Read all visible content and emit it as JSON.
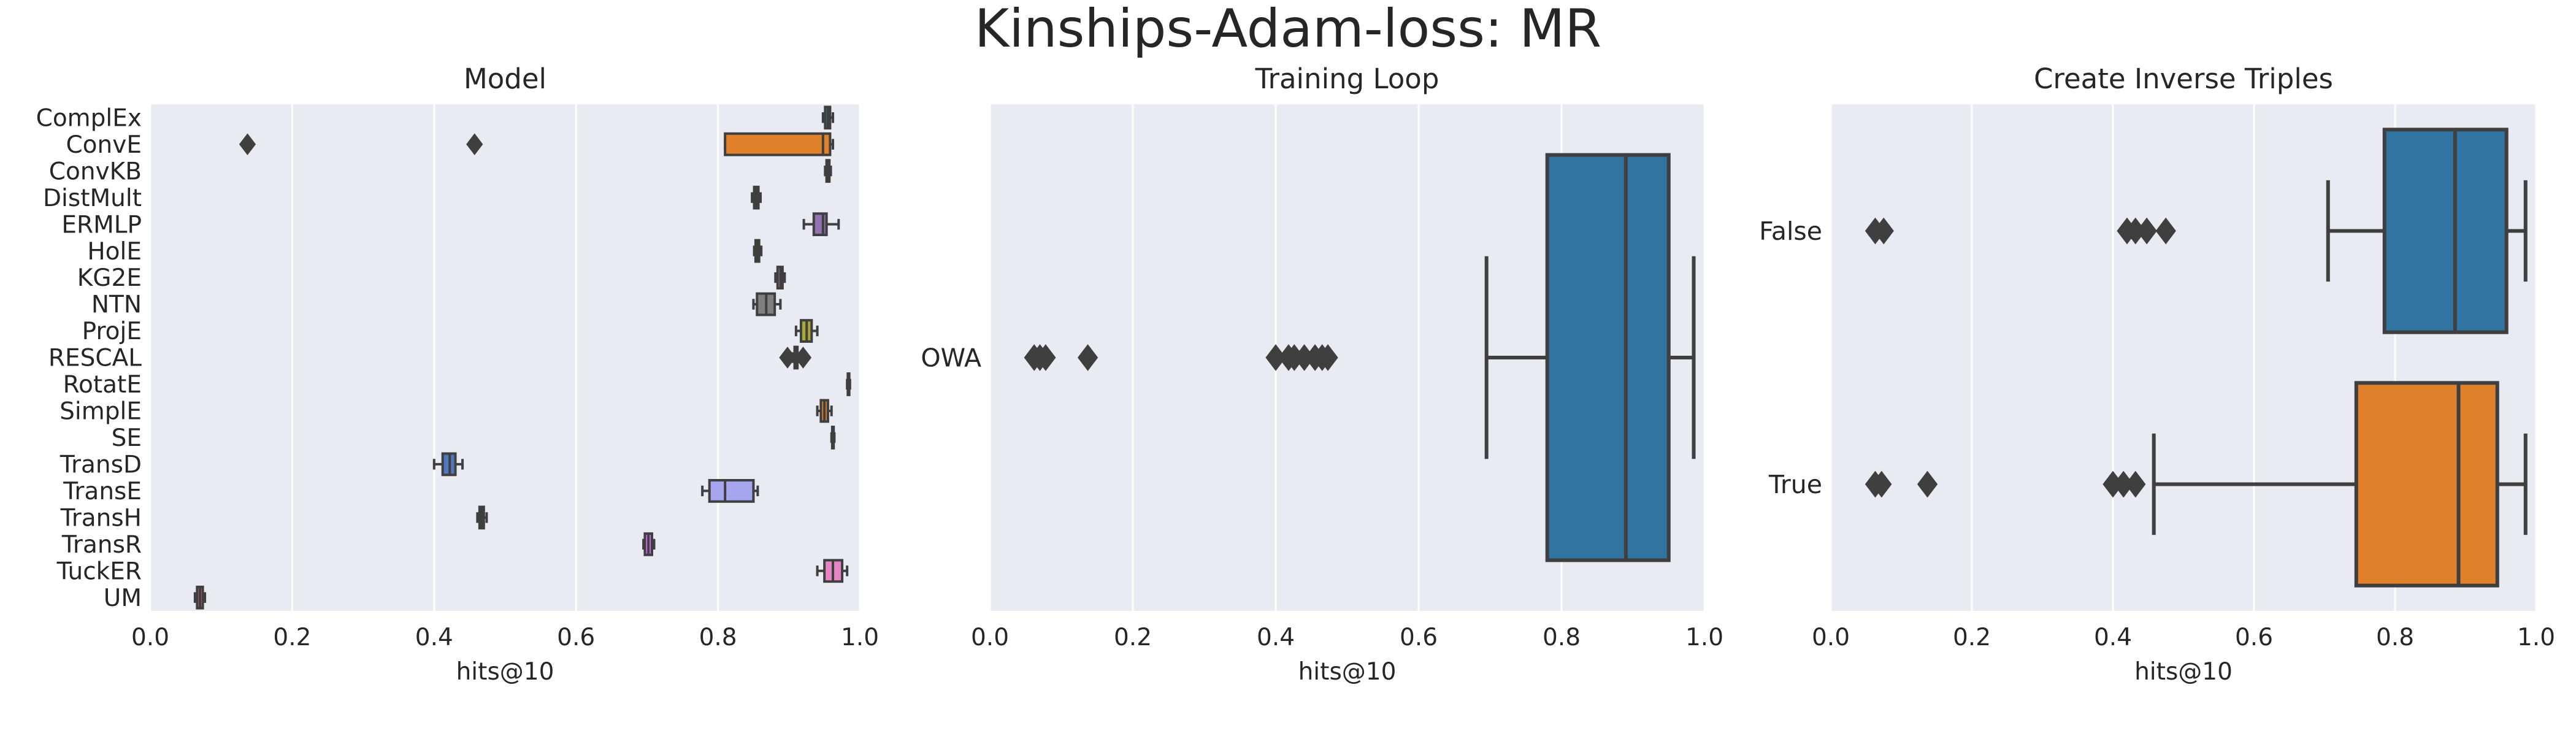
{
  "figure": {
    "title": "Kinships-Adam-loss: MR"
  },
  "chart_data": [
    {
      "type": "box",
      "title": "Model",
      "xlabel": "hits@10",
      "ylabel": "",
      "xlim": [
        0,
        1
      ],
      "xticks": [
        "0.0",
        "0.2",
        "0.4",
        "0.6",
        "0.8",
        "1.0"
      ],
      "grid": true,
      "categories": [
        "ComplEx",
        "ConvE",
        "ConvKB",
        "DistMult",
        "ERMLP",
        "HolE",
        "KG2E",
        "NTN",
        "ProjE",
        "RESCAL",
        "RotatE",
        "SimplE",
        "SE",
        "TransD",
        "TransE",
        "TransH",
        "TransR",
        "TuckER",
        "UM"
      ],
      "colors": [
        "#3274a1",
        "#e1812c",
        "#3a923a",
        "#c03d3e",
        "#9372b2",
        "#845b53",
        "#d684bd",
        "#7f7f7f",
        "#a9aa35",
        "#2eb4c4",
        "#3274a1",
        "#e1812c",
        "#3a923a",
        "#5078c1",
        "#a7a5ee",
        "#dc8a6c",
        "#d86df2",
        "#e585c5",
        "#ea5f8c"
      ],
      "boxes": [
        {
          "whislo": 0.948,
          "q1": 0.951,
          "med": 0.955,
          "q3": 0.958,
          "whishi": 0.962,
          "fliers": []
        },
        {
          "whislo": 0.81,
          "q1": 0.81,
          "med": 0.948,
          "q3": 0.958,
          "whishi": 0.962,
          "fliers": [
            0.137,
            0.457
          ]
        },
        {
          "whislo": 0.951,
          "q1": 0.953,
          "med": 0.955,
          "q3": 0.957,
          "whishi": 0.959,
          "fliers": []
        },
        {
          "whislo": 0.848,
          "q1": 0.851,
          "med": 0.854,
          "q3": 0.857,
          "whishi": 0.86,
          "fliers": []
        },
        {
          "whislo": 0.921,
          "q1": 0.935,
          "med": 0.948,
          "q3": 0.953,
          "whishi": 0.97,
          "fliers": []
        },
        {
          "whislo": 0.851,
          "q1": 0.853,
          "med": 0.855,
          "q3": 0.858,
          "whishi": 0.861,
          "fliers": []
        },
        {
          "whislo": 0.881,
          "q1": 0.884,
          "med": 0.888,
          "q3": 0.891,
          "whishi": 0.894,
          "fliers": []
        },
        {
          "whislo": 0.85,
          "q1": 0.855,
          "med": 0.868,
          "q3": 0.88,
          "whishi": 0.888,
          "fliers": []
        },
        {
          "whislo": 0.91,
          "q1": 0.917,
          "med": 0.925,
          "q3": 0.932,
          "whishi": 0.94,
          "fliers": []
        },
        {
          "whislo": 0.905,
          "q1": 0.908,
          "med": 0.91,
          "q3": 0.912,
          "whishi": 0.915,
          "fliers": [
            0.898,
            0.92
          ]
        },
        {
          "whislo": 0.982,
          "q1": 0.983,
          "med": 0.984,
          "q3": 0.985,
          "whishi": 0.986,
          "fliers": []
        },
        {
          "whislo": 0.94,
          "q1": 0.945,
          "med": 0.95,
          "q3": 0.955,
          "whishi": 0.96,
          "fliers": []
        },
        {
          "whislo": 0.96,
          "q1": 0.961,
          "med": 0.962,
          "q3": 0.963,
          "whishi": 0.964,
          "fliers": []
        },
        {
          "whislo": 0.4,
          "q1": 0.412,
          "med": 0.422,
          "q3": 0.43,
          "whishi": 0.44,
          "fliers": []
        },
        {
          "whislo": 0.778,
          "q1": 0.788,
          "med": 0.81,
          "q3": 0.85,
          "whishi": 0.856,
          "fliers": []
        },
        {
          "whislo": 0.461,
          "q1": 0.464,
          "med": 0.467,
          "q3": 0.47,
          "whishi": 0.474,
          "fliers": []
        },
        {
          "whislo": 0.695,
          "q1": 0.697,
          "med": 0.702,
          "q3": 0.707,
          "whishi": 0.71,
          "fliers": []
        },
        {
          "whislo": 0.94,
          "q1": 0.95,
          "med": 0.962,
          "q3": 0.975,
          "whishi": 0.982,
          "fliers": []
        },
        {
          "whislo": 0.063,
          "q1": 0.066,
          "med": 0.07,
          "q3": 0.074,
          "whishi": 0.077,
          "fliers": []
        }
      ]
    },
    {
      "type": "box",
      "title": "Training Loop",
      "xlabel": "hits@10",
      "ylabel": "",
      "xlim": [
        0,
        1
      ],
      "xticks": [
        "0.0",
        "0.2",
        "0.4",
        "0.6",
        "0.8",
        "1.0"
      ],
      "grid": true,
      "categories": [
        "OWA"
      ],
      "colors": [
        "#3274a1"
      ],
      "boxes": [
        {
          "whislo": 0.695,
          "q1": 0.78,
          "med": 0.89,
          "q3": 0.95,
          "whishi": 0.985,
          "fliers": [
            0.062,
            0.07,
            0.078,
            0.137,
            0.4,
            0.418,
            0.426,
            0.44,
            0.455,
            0.465,
            0.473
          ]
        }
      ]
    },
    {
      "type": "box",
      "title": "Create Inverse Triples",
      "xlabel": "hits@10",
      "ylabel": "",
      "xlim": [
        0,
        1
      ],
      "xticks": [
        "0.0",
        "0.2",
        "0.4",
        "0.6",
        "0.8",
        "1.0"
      ],
      "grid": true,
      "categories": [
        "False",
        "True"
      ],
      "colors": [
        "#3274a1",
        "#e1812c"
      ],
      "boxes": [
        {
          "whislo": 0.705,
          "q1": 0.785,
          "med": 0.885,
          "q3": 0.958,
          "whishi": 0.985,
          "fliers": [
            0.063,
            0.075,
            0.42,
            0.432,
            0.448,
            0.475
          ]
        },
        {
          "whislo": 0.458,
          "q1": 0.745,
          "med": 0.89,
          "q3": 0.945,
          "whishi": 0.985,
          "fliers": [
            0.063,
            0.072,
            0.137,
            0.4,
            0.415,
            0.432
          ]
        }
      ]
    }
  ]
}
